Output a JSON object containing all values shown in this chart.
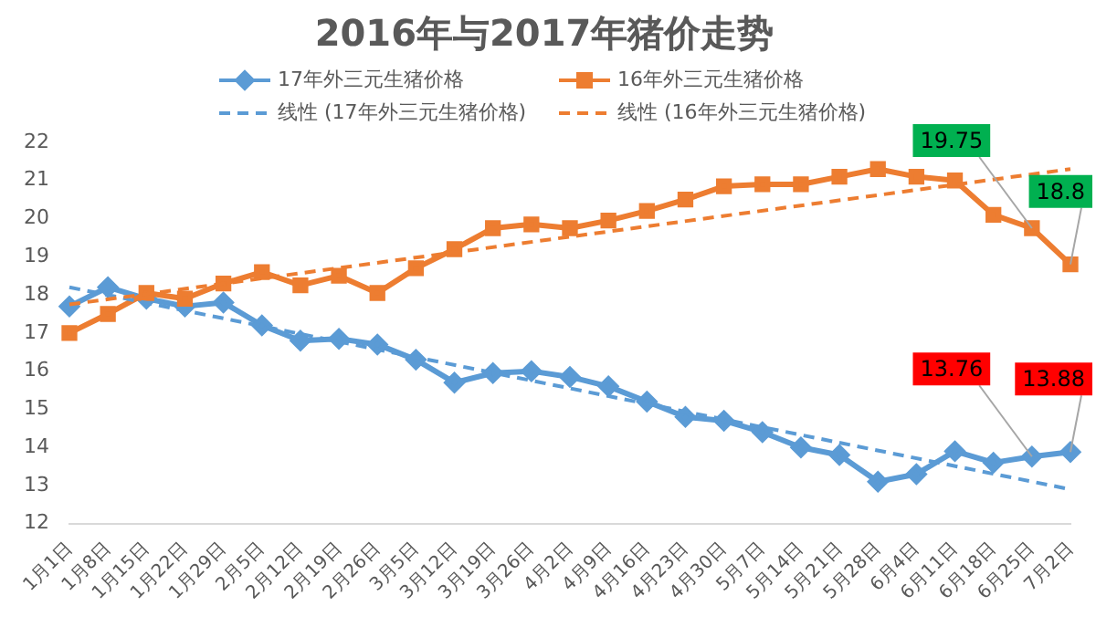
{
  "chart_data": {
    "type": "line",
    "title": "2016年与2017年猪价走势",
    "categories": [
      "1月1日",
      "1月8日",
      "1月15日",
      "1月22日",
      "1月29日",
      "2月5日",
      "2月12日",
      "2月19日",
      "2月26日",
      "3月5日",
      "3月12日",
      "3月19日",
      "3月26日",
      "4月2日",
      "4月9日",
      "4月16日",
      "4月23日",
      "4月30日",
      "5月7日",
      "5月14日",
      "5月21日",
      "5月28日",
      "6月4日",
      "6月11日",
      "6月18日",
      "6月25日",
      "7月2日"
    ],
    "series": [
      {
        "name": "17年外三元生猪价格",
        "color": "#5b9bd5",
        "marker": "diamond",
        "values": [
          17.7,
          18.2,
          17.9,
          17.7,
          17.8,
          17.2,
          16.8,
          16.85,
          16.7,
          16.3,
          15.7,
          15.95,
          16.0,
          15.85,
          15.6,
          15.2,
          14.8,
          14.7,
          14.4,
          14.0,
          13.8,
          13.1,
          13.3,
          13.9,
          13.6,
          13.76,
          13.88
        ],
        "value_labels": [
          null,
          null,
          null,
          null,
          null,
          null,
          null,
          null,
          null,
          null,
          null,
          null,
          null,
          null,
          null,
          null,
          null,
          null,
          null,
          null,
          null,
          null,
          null,
          null,
          null,
          "13.76",
          "13.88"
        ]
      },
      {
        "name": "16年外三元生猪价格",
        "color": "#ed7d31",
        "marker": "square",
        "values": [
          17.0,
          17.5,
          18.05,
          17.9,
          18.3,
          18.6,
          18.25,
          18.5,
          18.05,
          18.7,
          19.2,
          19.75,
          19.85,
          19.75,
          19.95,
          20.2,
          20.5,
          20.85,
          20.9,
          20.9,
          21.1,
          21.3,
          21.1,
          21.0,
          20.1,
          19.75,
          18.8
        ],
        "value_labels": [
          null,
          null,
          null,
          null,
          null,
          null,
          null,
          null,
          null,
          null,
          null,
          null,
          null,
          null,
          null,
          null,
          null,
          null,
          null,
          null,
          null,
          null,
          null,
          null,
          null,
          "19.75",
          "18.8"
        ]
      },
      {
        "name": "线性 (17年外三元生猪价格)",
        "color": "#5b9bd5",
        "marker": "none",
        "line_style": "dashed",
        "x": [
          "1月1日",
          "7月2日"
        ],
        "values": [
          18.2,
          12.9
        ]
      },
      {
        "name": "线性 (16年外三元生猪价格)",
        "color": "#ed7d31",
        "marker": "none",
        "line_style": "dashed",
        "x": [
          "1月1日",
          "7月2日"
        ],
        "values": [
          17.75,
          21.3
        ]
      }
    ],
    "ylim": [
      12,
      22
    ],
    "yticks": [
      12,
      13,
      14,
      15,
      16,
      17,
      18,
      19,
      20,
      21,
      22
    ],
    "grid": false,
    "legend": "top"
  }
}
